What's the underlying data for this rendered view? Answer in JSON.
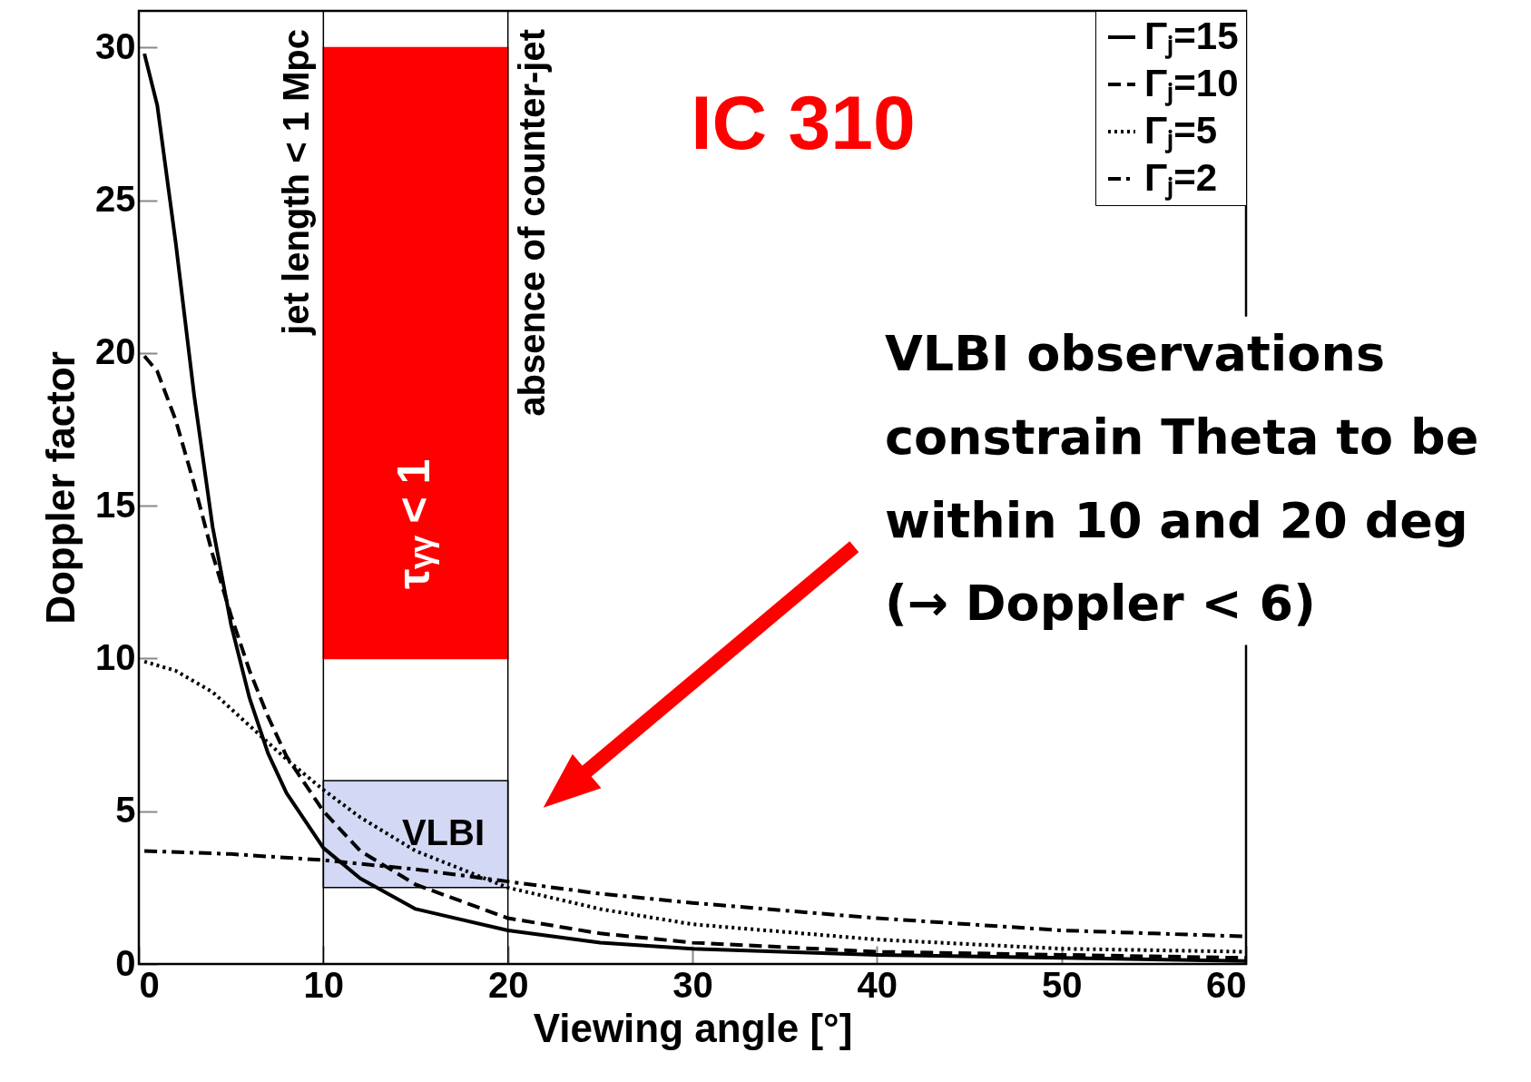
{
  "chart_data": {
    "type": "line",
    "xlabel": "Viewing angle [°]",
    "ylabel": "Doppler factor",
    "xlim": [
      0,
      60
    ],
    "ylim": [
      0,
      31.2
    ],
    "xticks": [
      0,
      10,
      20,
      30,
      40,
      50,
      60
    ],
    "yticks": [
      0,
      5,
      10,
      15,
      20,
      25,
      30
    ],
    "grid": false,
    "legend": "top right",
    "series": [
      {
        "name": "Γⱼ=15",
        "color": "#000000",
        "line_style": "solid",
        "x": [
          0.3,
          1,
          2,
          3,
          4,
          5,
          6,
          7,
          8,
          10,
          12,
          15,
          20,
          25,
          30,
          40,
          50,
          60
        ],
        "values": [
          29.8,
          28.1,
          23.6,
          18.6,
          14.3,
          11.1,
          8.7,
          6.9,
          5.6,
          3.8,
          2.8,
          1.8,
          1.1,
          0.7,
          0.5,
          0.3,
          0.2,
          0.1
        ]
      },
      {
        "name": "Γⱼ=10",
        "color": "#000000",
        "line_style": "dashed",
        "x": [
          0.3,
          1,
          2,
          3,
          4,
          5,
          6,
          7,
          8,
          10,
          12,
          15,
          20,
          25,
          30,
          40,
          50,
          60
        ],
        "values": [
          19.9,
          19.4,
          17.8,
          15.7,
          13.4,
          11.4,
          9.6,
          8.1,
          6.8,
          5.0,
          3.7,
          2.6,
          1.5,
          1.0,
          0.7,
          0.4,
          0.3,
          0.2
        ]
      },
      {
        "name": "Γⱼ=5",
        "color": "#000000",
        "line_style": "dotted",
        "x": [
          0.3,
          2,
          4,
          6,
          8,
          10,
          12,
          15,
          20,
          25,
          30,
          40,
          50,
          60
        ],
        "values": [
          9.9,
          9.6,
          8.9,
          7.8,
          6.7,
          5.7,
          4.8,
          3.7,
          2.5,
          1.8,
          1.3,
          0.8,
          0.5,
          0.4
        ]
      },
      {
        "name": "Γⱼ=2",
        "color": "#000000",
        "line_style": "dashdot",
        "x": [
          0.3,
          5,
          10,
          15,
          20,
          25,
          30,
          40,
          50,
          60
        ],
        "values": [
          3.7,
          3.6,
          3.4,
          3.1,
          2.7,
          2.3,
          2.0,
          1.5,
          1.1,
          0.9
        ]
      }
    ],
    "ref_lines": [
      {
        "axis": "x",
        "value": 10,
        "label": "jet length < 1 Mpc"
      },
      {
        "axis": "x",
        "value": 20,
        "label": "absence of counter-jet"
      }
    ],
    "bands": [
      {
        "axis": "y",
        "from": 10,
        "to": 30,
        "label": "τᵧᵧ < 1",
        "color": "#ff0000"
      },
      {
        "axis": "y",
        "from": 2.5,
        "to": 6,
        "label": "VLBI",
        "color": "#d3d9f4"
      }
    ],
    "annotations": [
      "IC 310",
      "VLBI observations\nconstrain Theta to be\nwithin 10 and 20 deg\n(→ Doppler < 6)"
    ]
  }
}
